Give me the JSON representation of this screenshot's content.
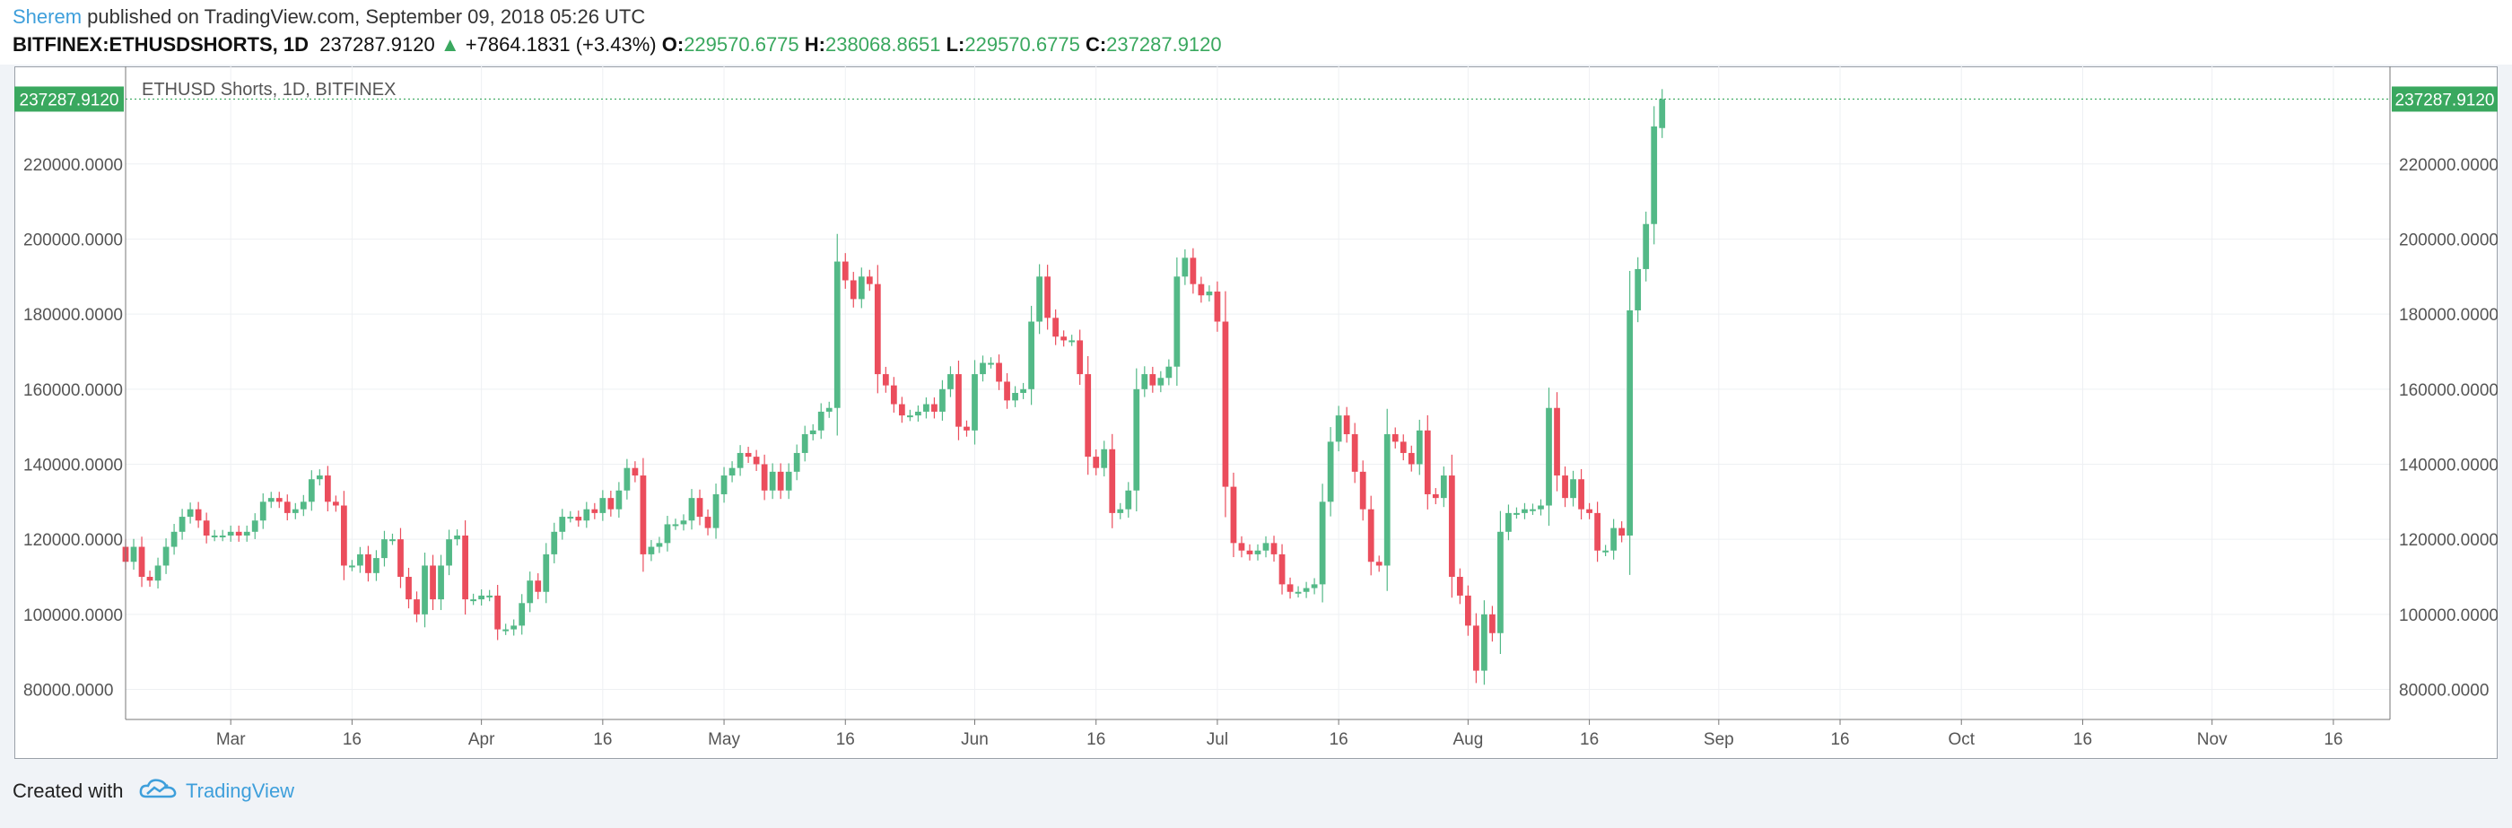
{
  "header": {
    "author": "Sherem",
    "published_text": "published on TradingView.com, September 09, 2018 05:26 UTC",
    "symbol": "BITFINEX:ETHUSDSHORTS, 1D",
    "last": "237287.9120",
    "change": "+7864.1831 (+3.43%)",
    "o_label": "O:",
    "o_value": "229570.6775",
    "h_label": "H:",
    "h_value": "238068.8651",
    "l_label": "L:",
    "l_value": "229570.6775",
    "c_label": "C:",
    "c_value": "237287.9120"
  },
  "footer": {
    "created_with": "Created with",
    "brand": "TradingView"
  },
  "colors": {
    "up": "#53b987",
    "down": "#eb4d5c",
    "price_label": "#3aa85f",
    "author": "#3e9fdb"
  },
  "chart_data": {
    "type": "candlestick",
    "title": "ETHUSD Shorts, 1D, BITFINEX",
    "last_price_label": "237287.9120",
    "last_price": 237287.912,
    "ylim": [
      72000,
      246000
    ],
    "y_ticks": [
      80000,
      100000,
      120000,
      140000,
      160000,
      180000,
      200000,
      220000
    ],
    "y_tick_labels": [
      "80000.0000",
      "100000.0000",
      "120000.0000",
      "140000.0000",
      "160000.0000",
      "180000.0000",
      "200000.0000",
      "220000.0000"
    ],
    "x_start": "2018-02-16",
    "x_end": "2018-11-23",
    "x_ticks": [
      {
        "date": "2018-03-01",
        "label": "Mar"
      },
      {
        "date": "2018-03-16",
        "label": "16"
      },
      {
        "date": "2018-04-01",
        "label": "Apr"
      },
      {
        "date": "2018-04-16",
        "label": "16"
      },
      {
        "date": "2018-05-01",
        "label": "May"
      },
      {
        "date": "2018-05-16",
        "label": "16"
      },
      {
        "date": "2018-06-01",
        "label": "Jun"
      },
      {
        "date": "2018-06-16",
        "label": "16"
      },
      {
        "date": "2018-07-01",
        "label": "Jul"
      },
      {
        "date": "2018-07-16",
        "label": "16"
      },
      {
        "date": "2018-08-01",
        "label": "Aug"
      },
      {
        "date": "2018-08-16",
        "label": "16"
      },
      {
        "date": "2018-09-01",
        "label": "Sep"
      },
      {
        "date": "2018-09-16",
        "label": "16"
      },
      {
        "date": "2018-10-01",
        "label": "Oct"
      },
      {
        "date": "2018-10-16",
        "label": "16"
      },
      {
        "date": "2018-11-01",
        "label": "Nov"
      },
      {
        "date": "2018-11-16",
        "label": "16"
      }
    ],
    "grid": true,
    "series_start_date": "2018-02-16",
    "close": [
      114000,
      118000,
      110000,
      109000,
      113000,
      118000,
      122000,
      126000,
      128000,
      125000,
      121000,
      121000,
      121000,
      122000,
      121000,
      122000,
      125000,
      130000,
      131000,
      130000,
      127000,
      128000,
      130000,
      136000,
      137000,
      130000,
      129000,
      113000,
      113000,
      116000,
      111000,
      115000,
      120000,
      120000,
      110000,
      104000,
      100000,
      113000,
      104000,
      113000,
      120000,
      121000,
      104000,
      104000,
      105000,
      105000,
      96000,
      96000,
      97000,
      103000,
      109000,
      106000,
      116000,
      122000,
      126000,
      126000,
      125000,
      128000,
      127000,
      131000,
      128000,
      133000,
      139000,
      137000,
      116000,
      118000,
      119000,
      124000,
      124000,
      125000,
      131000,
      126000,
      123000,
      132000,
      137000,
      139000,
      143000,
      142000,
      140000,
      133000,
      138000,
      133000,
      138000,
      143000,
      148000,
      149000,
      154000,
      155000,
      194000,
      189000,
      184000,
      190000,
      188000,
      164000,
      161000,
      156000,
      153000,
      153000,
      154000,
      156000,
      154000,
      160000,
      164000,
      150000,
      149000,
      164000,
      167000,
      167000,
      162000,
      157000,
      159000,
      160000,
      178000,
      190000,
      179000,
      174000,
      173000,
      173000,
      164000,
      142000,
      139000,
      144000,
      127000,
      128000,
      133000,
      160000,
      164000,
      161000,
      163000,
      166000,
      190000,
      195000,
      188000,
      185000,
      186000,
      178000,
      134000,
      119000,
      117000,
      116000,
      117000,
      119000,
      116000,
      108000,
      106000,
      106000,
      107000,
      108000,
      130000,
      146000,
      153000,
      148000,
      138000,
      128000,
      114000,
      113000,
      148000,
      146000,
      143000,
      140000,
      149000,
      132000,
      131000,
      137000,
      110000,
      105000,
      97000,
      85000,
      100000,
      95000,
      122000,
      127000,
      127000,
      128000,
      128000,
      129000,
      155000,
      137000,
      131000,
      136000,
      128000,
      127000,
      117000,
      117000,
      123000,
      121000,
      181000,
      192000,
      204000,
      230000,
      237288
    ],
    "open": [
      118000,
      114000,
      118000,
      110000,
      109000,
      113000,
      118000,
      122000,
      126000,
      128000,
      125000,
      121000,
      121000,
      121000,
      122000,
      121000,
      122000,
      125000,
      130000,
      131000,
      130000,
      127000,
      128000,
      130000,
      136000,
      137000,
      130000,
      129000,
      113000,
      113000,
      116000,
      111000,
      115000,
      120000,
      120000,
      110000,
      104000,
      100000,
      113000,
      104000,
      113000,
      120000,
      121000,
      104000,
      104000,
      105000,
      105000,
      96000,
      96000,
      97000,
      103000,
      109000,
      106000,
      116000,
      122000,
      126000,
      126000,
      125000,
      128000,
      127000,
      131000,
      128000,
      133000,
      139000,
      137000,
      116000,
      118000,
      119000,
      124000,
      124000,
      125000,
      131000,
      126000,
      123000,
      132000,
      137000,
      139000,
      143000,
      142000,
      140000,
      133000,
      138000,
      133000,
      138000,
      143000,
      148000,
      149000,
      154000,
      155000,
      194000,
      189000,
      184000,
      190000,
      188000,
      164000,
      161000,
      156000,
      153000,
      153000,
      154000,
      156000,
      154000,
      160000,
      164000,
      150000,
      149000,
      164000,
      167000,
      167000,
      162000,
      157000,
      159000,
      160000,
      178000,
      190000,
      179000,
      174000,
      173000,
      173000,
      164000,
      142000,
      139000,
      144000,
      127000,
      128000,
      133000,
      160000,
      164000,
      161000,
      163000,
      166000,
      190000,
      195000,
      188000,
      185000,
      186000,
      178000,
      134000,
      119000,
      117000,
      116000,
      117000,
      119000,
      116000,
      108000,
      106000,
      106000,
      107000,
      108000,
      130000,
      146000,
      153000,
      148000,
      138000,
      128000,
      114000,
      113000,
      148000,
      146000,
      143000,
      140000,
      149000,
      132000,
      131000,
      137000,
      110000,
      105000,
      97000,
      85000,
      100000,
      95000,
      122000,
      127000,
      127000,
      128000,
      128000,
      129000,
      155000,
      137000,
      131000,
      136000,
      128000,
      127000,
      117000,
      117000,
      123000,
      121000,
      181000,
      192000,
      204000,
      229571
    ]
  }
}
